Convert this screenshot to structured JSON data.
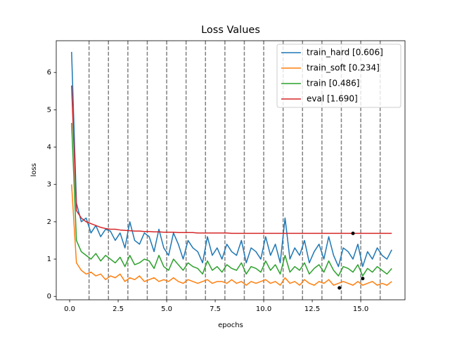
{
  "chart_data": {
    "type": "line",
    "title": "Loss Values",
    "xlabel": "epochs",
    "ylabel": "loss",
    "xlim": [
      -0.69,
      17.28
    ],
    "ylim": [
      -0.09,
      6.85
    ],
    "xticks": [
      {
        "value": 0,
        "label": "0.0"
      },
      {
        "value": 2.5,
        "label": "2.5"
      },
      {
        "value": 5,
        "label": "5.0"
      },
      {
        "value": 7.5,
        "label": "7.5"
      },
      {
        "value": 10,
        "label": "10.0"
      },
      {
        "value": 12.5,
        "label": "12.5"
      },
      {
        "value": 15,
        "label": "15.0"
      }
    ],
    "yticks": [
      0,
      1,
      2,
      3,
      4,
      5,
      6
    ],
    "legend": "upper right",
    "x": [
      0.1,
      0.35,
      0.6,
      0.85,
      1.1,
      1.35,
      1.6,
      1.85,
      2.1,
      2.35,
      2.6,
      2.85,
      3.1,
      3.35,
      3.6,
      3.85,
      4.1,
      4.35,
      4.6,
      4.85,
      5.1,
      5.35,
      5.6,
      5.85,
      6.1,
      6.35,
      6.6,
      6.85,
      7.1,
      7.35,
      7.6,
      7.85,
      8.1,
      8.35,
      8.6,
      8.85,
      9.1,
      9.35,
      9.6,
      9.85,
      10.1,
      10.35,
      10.6,
      10.85,
      11.1,
      11.35,
      11.6,
      11.85,
      12.1,
      12.35,
      12.6,
      12.85,
      13.1,
      13.35,
      13.6,
      13.85,
      14.1,
      14.35,
      14.6,
      14.85,
      15.1,
      15.35,
      15.6,
      15.85,
      16.1,
      16.35,
      16.6
    ],
    "series": [
      {
        "name": "train_hard [0.606]",
        "color": "#1f77b4",
        "values": [
          6.55,
          2.5,
          2.0,
          2.1,
          1.7,
          1.9,
          1.6,
          1.8,
          1.75,
          1.5,
          1.7,
          1.3,
          2.0,
          1.5,
          1.4,
          1.7,
          1.6,
          1.2,
          1.8,
          1.3,
          1.1,
          1.7,
          1.4,
          1.0,
          1.5,
          1.3,
          1.2,
          0.9,
          1.6,
          1.1,
          1.3,
          1.0,
          1.4,
          1.2,
          1.1,
          1.5,
          0.9,
          1.3,
          1.2,
          1.0,
          1.6,
          1.1,
          1.4,
          0.9,
          2.1,
          1.0,
          1.3,
          1.1,
          1.5,
          0.9,
          1.2,
          1.4,
          1.0,
          1.6,
          1.1,
          0.8,
          1.3,
          1.2,
          1.0,
          1.4,
          0.8,
          1.2,
          1.0,
          1.3,
          1.1,
          1.0,
          1.25
        ]
      },
      {
        "name": "train_soft [0.234]",
        "color": "#ff7f0e",
        "values": [
          3.0,
          0.9,
          0.7,
          0.6,
          0.65,
          0.55,
          0.6,
          0.45,
          0.55,
          0.5,
          0.6,
          0.4,
          0.5,
          0.45,
          0.55,
          0.4,
          0.45,
          0.5,
          0.4,
          0.45,
          0.4,
          0.5,
          0.4,
          0.35,
          0.45,
          0.4,
          0.35,
          0.4,
          0.45,
          0.35,
          0.4,
          0.4,
          0.35,
          0.45,
          0.35,
          0.4,
          0.3,
          0.4,
          0.35,
          0.4,
          0.45,
          0.35,
          0.4,
          0.3,
          0.5,
          0.35,
          0.4,
          0.3,
          0.45,
          0.35,
          0.3,
          0.4,
          0.35,
          0.45,
          0.3,
          0.35,
          0.4,
          0.35,
          0.3,
          0.4,
          0.3,
          0.35,
          0.4,
          0.3,
          0.35,
          0.3,
          0.4
        ]
      },
      {
        "name": "train [0.486]",
        "color": "#2ca02c",
        "values": [
          4.65,
          1.5,
          1.2,
          1.1,
          1.0,
          1.15,
          0.95,
          1.1,
          1.0,
          0.9,
          1.05,
          0.8,
          1.1,
          0.85,
          0.9,
          1.0,
          0.95,
          0.75,
          1.1,
          0.8,
          0.7,
          1.0,
          0.85,
          0.7,
          0.9,
          0.8,
          0.75,
          0.6,
          0.95,
          0.7,
          0.8,
          0.65,
          0.85,
          0.75,
          0.7,
          0.9,
          0.6,
          0.8,
          0.75,
          0.65,
          0.95,
          0.7,
          0.85,
          0.6,
          1.1,
          0.65,
          0.8,
          0.7,
          0.9,
          0.6,
          0.75,
          0.85,
          0.65,
          0.95,
          0.7,
          0.55,
          0.8,
          0.75,
          0.65,
          0.85,
          0.55,
          0.75,
          0.65,
          0.8,
          0.7,
          0.6,
          0.75
        ]
      },
      {
        "name": "eval [1.690]",
        "color": "#d62728",
        "values": [
          5.65,
          2.3,
          2.1,
          2.0,
          1.95,
          1.9,
          1.85,
          1.82,
          1.8,
          1.8,
          1.78,
          1.77,
          1.76,
          1.75,
          1.75,
          1.74,
          1.74,
          1.73,
          1.73,
          1.72,
          1.72,
          1.72,
          1.71,
          1.71,
          1.71,
          1.71,
          1.7,
          1.7,
          1.7,
          1.7,
          1.7,
          1.7,
          1.7,
          1.69,
          1.69,
          1.69,
          1.69,
          1.69,
          1.69,
          1.69,
          1.69,
          1.69,
          1.69,
          1.69,
          1.69,
          1.69,
          1.69,
          1.69,
          1.69,
          1.69,
          1.69,
          1.69,
          1.69,
          1.69,
          1.69,
          1.69,
          1.69,
          1.69,
          1.69,
          1.69,
          1.69,
          1.69,
          1.69,
          1.69,
          1.69,
          1.69,
          1.69
        ]
      }
    ],
    "vlines": {
      "x": [
        1,
        2,
        3,
        4,
        5,
        6,
        7,
        8,
        9,
        10,
        11,
        12,
        13,
        14,
        15,
        16
      ],
      "color": "#808080"
    },
    "points": {
      "x": [
        13.9,
        15.1,
        14.6
      ],
      "y": [
        0.23,
        0.48,
        1.69
      ],
      "color": "#000000"
    }
  }
}
